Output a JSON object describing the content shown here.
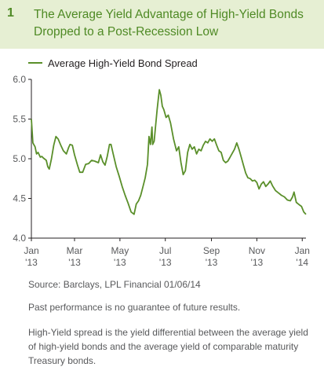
{
  "figure": {
    "number": "1",
    "title": "The Average Yield Advantage of High-Yield Bonds Dropped to a Post-Recession Low",
    "header_bg": "#e6efd3",
    "title_color": "#4f8a25"
  },
  "chart_data": {
    "type": "line",
    "title": "The Average Yield Advantage of High-Yield Bonds Dropped to a Post-Recession Low",
    "xlabel": "",
    "ylabel": "",
    "xlim": [
      "2013-01-02",
      "2014-01-06"
    ],
    "ylim": [
      4.0,
      6.0
    ],
    "yticks": [
      4.0,
      4.5,
      5.0,
      5.5,
      6.0
    ],
    "ytick_labels": [
      "4.0",
      "4.5",
      "5.0",
      "5.5",
      "6.0"
    ],
    "xticks": [
      {
        "date": "2013-01-01",
        "label": "Jan",
        "year": "'13"
      },
      {
        "date": "2013-03-01",
        "label": "Mar",
        "year": "'13"
      },
      {
        "date": "2013-05-01",
        "label": "May",
        "year": "'13"
      },
      {
        "date": "2013-07-01",
        "label": "Jul",
        "year": "'13"
      },
      {
        "date": "2013-09-01",
        "label": "Sep",
        "year": "'13"
      },
      {
        "date": "2013-11-01",
        "label": "Nov",
        "year": "'13"
      },
      {
        "date": "2014-01-01",
        "label": "Jan",
        "year": "'14"
      }
    ],
    "grid": false,
    "legend_position": "top-left",
    "series": [
      {
        "name": "Average High-Yield Bond Spread",
        "color": "#5a8f2a",
        "points": [
          {
            "x": "2013-01-02",
            "y": 5.5
          },
          {
            "x": "2013-01-04",
            "y": 5.2
          },
          {
            "x": "2013-01-07",
            "y": 5.15
          },
          {
            "x": "2013-01-09",
            "y": 5.06
          },
          {
            "x": "2013-01-11",
            "y": 5.08
          },
          {
            "x": "2013-01-14",
            "y": 5.02
          },
          {
            "x": "2013-01-16",
            "y": 5.03
          },
          {
            "x": "2013-01-18",
            "y": 5.01
          },
          {
            "x": "2013-01-22",
            "y": 4.98
          },
          {
            "x": "2013-01-24",
            "y": 4.9
          },
          {
            "x": "2013-01-26",
            "y": 4.87
          },
          {
            "x": "2013-01-29",
            "y": 5.0
          },
          {
            "x": "2013-02-01",
            "y": 5.17
          },
          {
            "x": "2013-02-04",
            "y": 5.28
          },
          {
            "x": "2013-02-07",
            "y": 5.25
          },
          {
            "x": "2013-02-11",
            "y": 5.16
          },
          {
            "x": "2013-02-14",
            "y": 5.1
          },
          {
            "x": "2013-02-18",
            "y": 5.06
          },
          {
            "x": "2013-02-21",
            "y": 5.14
          },
          {
            "x": "2013-02-23",
            "y": 5.18
          },
          {
            "x": "2013-02-26",
            "y": 5.17
          },
          {
            "x": "2013-03-01",
            "y": 5.05
          },
          {
            "x": "2013-03-05",
            "y": 4.92
          },
          {
            "x": "2013-03-08",
            "y": 4.83
          },
          {
            "x": "2013-03-12",
            "y": 4.83
          },
          {
            "x": "2013-03-16",
            "y": 4.93
          },
          {
            "x": "2013-03-20",
            "y": 4.94
          },
          {
            "x": "2013-03-24",
            "y": 4.98
          },
          {
            "x": "2013-03-28",
            "y": 4.97
          },
          {
            "x": "2013-04-02",
            "y": 4.95
          },
          {
            "x": "2013-04-05",
            "y": 5.05
          },
          {
            "x": "2013-04-08",
            "y": 4.96
          },
          {
            "x": "2013-04-11",
            "y": 4.92
          },
          {
            "x": "2013-04-14",
            "y": 5.03
          },
          {
            "x": "2013-04-17",
            "y": 5.18
          },
          {
            "x": "2013-04-19",
            "y": 5.18
          },
          {
            "x": "2013-04-22",
            "y": 5.06
          },
          {
            "x": "2013-04-26",
            "y": 4.9
          },
          {
            "x": "2013-04-30",
            "y": 4.78
          },
          {
            "x": "2013-05-04",
            "y": 4.65
          },
          {
            "x": "2013-05-08",
            "y": 4.54
          },
          {
            "x": "2013-05-12",
            "y": 4.44
          },
          {
            "x": "2013-05-16",
            "y": 4.33
          },
          {
            "x": "2013-05-20",
            "y": 4.3
          },
          {
            "x": "2013-05-23",
            "y": 4.43
          },
          {
            "x": "2013-05-26",
            "y": 4.47
          },
          {
            "x": "2013-05-29",
            "y": 4.54
          },
          {
            "x": "2013-06-01",
            "y": 4.65
          },
          {
            "x": "2013-06-04",
            "y": 4.76
          },
          {
            "x": "2013-06-07",
            "y": 4.93
          },
          {
            "x": "2013-06-09",
            "y": 5.28
          },
          {
            "x": "2013-06-11",
            "y": 5.18
          },
          {
            "x": "2013-06-13",
            "y": 5.4
          },
          {
            "x": "2013-06-14",
            "y": 5.18
          },
          {
            "x": "2013-06-16",
            "y": 5.22
          },
          {
            "x": "2013-06-18",
            "y": 5.42
          },
          {
            "x": "2013-06-20",
            "y": 5.62
          },
          {
            "x": "2013-06-23",
            "y": 5.87
          },
          {
            "x": "2013-06-25",
            "y": 5.8
          },
          {
            "x": "2013-06-27",
            "y": 5.66
          },
          {
            "x": "2013-06-29",
            "y": 5.62
          },
          {
            "x": "2013-07-02",
            "y": 5.52
          },
          {
            "x": "2013-07-05",
            "y": 5.55
          },
          {
            "x": "2013-07-08",
            "y": 5.45
          },
          {
            "x": "2013-07-12",
            "y": 5.25
          },
          {
            "x": "2013-07-16",
            "y": 5.1
          },
          {
            "x": "2013-07-19",
            "y": 5.15
          },
          {
            "x": "2013-07-22",
            "y": 4.95
          },
          {
            "x": "2013-07-25",
            "y": 4.8
          },
          {
            "x": "2013-07-28",
            "y": 4.85
          },
          {
            "x": "2013-07-31",
            "y": 5.08
          },
          {
            "x": "2013-08-03",
            "y": 5.18
          },
          {
            "x": "2013-08-06",
            "y": 5.12
          },
          {
            "x": "2013-08-09",
            "y": 5.15
          },
          {
            "x": "2013-08-12",
            "y": 5.06
          },
          {
            "x": "2013-08-15",
            "y": 5.12
          },
          {
            "x": "2013-08-18",
            "y": 5.1
          },
          {
            "x": "2013-08-21",
            "y": 5.17
          },
          {
            "x": "2013-08-24",
            "y": 5.22
          },
          {
            "x": "2013-08-27",
            "y": 5.2
          },
          {
            "x": "2013-08-30",
            "y": 5.25
          },
          {
            "x": "2013-09-02",
            "y": 5.22
          },
          {
            "x": "2013-09-05",
            "y": 5.25
          },
          {
            "x": "2013-09-08",
            "y": 5.17
          },
          {
            "x": "2013-09-11",
            "y": 5.1
          },
          {
            "x": "2013-09-14",
            "y": 5.08
          },
          {
            "x": "2013-09-17",
            "y": 4.98
          },
          {
            "x": "2013-09-20",
            "y": 4.95
          },
          {
            "x": "2013-09-23",
            "y": 4.97
          },
          {
            "x": "2013-09-26",
            "y": 5.02
          },
          {
            "x": "2013-09-29",
            "y": 5.07
          },
          {
            "x": "2013-10-02",
            "y": 5.12
          },
          {
            "x": "2013-10-05",
            "y": 5.2
          },
          {
            "x": "2013-10-08",
            "y": 5.12
          },
          {
            "x": "2013-10-11",
            "y": 5.02
          },
          {
            "x": "2013-10-14",
            "y": 4.92
          },
          {
            "x": "2013-10-17",
            "y": 4.82
          },
          {
            "x": "2013-10-20",
            "y": 4.76
          },
          {
            "x": "2013-10-23",
            "y": 4.75
          },
          {
            "x": "2013-10-26",
            "y": 4.72
          },
          {
            "x": "2013-10-29",
            "y": 4.73
          },
          {
            "x": "2013-11-01",
            "y": 4.7
          },
          {
            "x": "2013-11-04",
            "y": 4.62
          },
          {
            "x": "2013-11-07",
            "y": 4.68
          },
          {
            "x": "2013-11-10",
            "y": 4.71
          },
          {
            "x": "2013-11-13",
            "y": 4.65
          },
          {
            "x": "2013-11-16",
            "y": 4.68
          },
          {
            "x": "2013-11-19",
            "y": 4.72
          },
          {
            "x": "2013-11-22",
            "y": 4.66
          },
          {
            "x": "2013-11-26",
            "y": 4.6
          },
          {
            "x": "2013-11-30",
            "y": 4.57
          },
          {
            "x": "2013-12-04",
            "y": 4.54
          },
          {
            "x": "2013-12-08",
            "y": 4.52
          },
          {
            "x": "2013-12-12",
            "y": 4.48
          },
          {
            "x": "2013-12-16",
            "y": 4.47
          },
          {
            "x": "2013-12-19",
            "y": 4.52
          },
          {
            "x": "2013-12-21",
            "y": 4.58
          },
          {
            "x": "2013-12-24",
            "y": 4.45
          },
          {
            "x": "2013-12-28",
            "y": 4.42
          },
          {
            "x": "2013-12-31",
            "y": 4.4
          },
          {
            "x": "2014-01-03",
            "y": 4.33
          },
          {
            "x": "2014-01-06",
            "y": 4.3
          }
        ]
      }
    ]
  },
  "notes": {
    "source": "Source: Barclays, LPL Financial   01/06/14",
    "disclaimer": "Past performance is no guarantee of future results.",
    "definition": "High-Yield spread is the yield differential between the average yield of high-yield bonds and the average yield of comparable maturity Treasury bonds."
  }
}
